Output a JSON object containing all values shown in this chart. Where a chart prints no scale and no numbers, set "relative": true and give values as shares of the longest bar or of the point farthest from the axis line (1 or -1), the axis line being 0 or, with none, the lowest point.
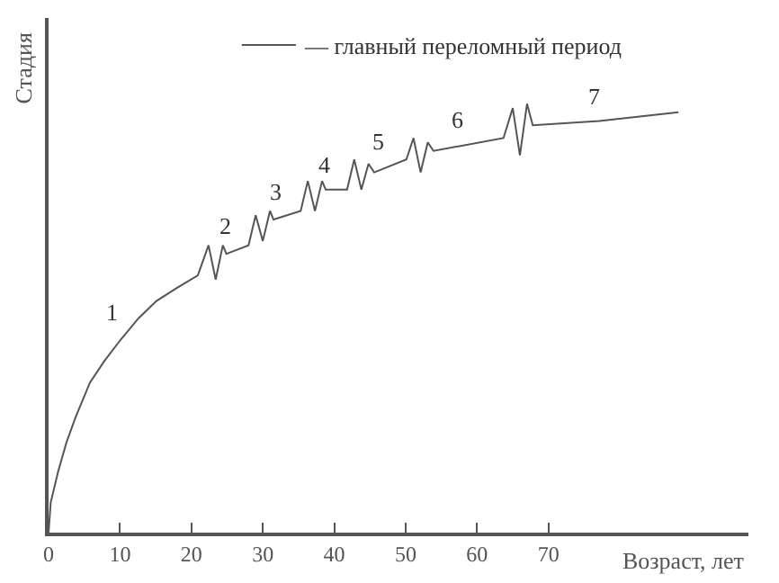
{
  "chart_data": {
    "type": "line",
    "relative": true,
    "xlabel": "Возраст, лет",
    "ylabel": "Стадия",
    "xlim": [
      0,
      98
    ],
    "xticks": [
      0,
      10,
      20,
      30,
      40,
      50,
      60,
      70
    ],
    "x": [
      0,
      0.3,
      1.3,
      2.5,
      3.8,
      5.8,
      7.8,
      10.1,
      12.6,
      15.1,
      17.9,
      20.9,
      22.4,
      23.4,
      24.4,
      24.9,
      28.0,
      29.0,
      30.0,
      31.0,
      31.5,
      35.3,
      36.3,
      37.3,
      38.3,
      38.8,
      41.8,
      42.8,
      43.8,
      44.8,
      45.6,
      50.1,
      51.1,
      52.1,
      53.1,
      53.9,
      63.7,
      65.0,
      66.0,
      67.0,
      67.8,
      77.1,
      88.2
    ],
    "series": [
      {
        "name": "— главный переломный период",
        "color": "#555555",
        "values": [
          0,
          0.07,
          0.14,
          0.21,
          0.27,
          0.35,
          0.4,
          0.45,
          0.5,
          0.54,
          0.57,
          0.6,
          0.67,
          0.59,
          0.67,
          0.65,
          0.67,
          0.74,
          0.68,
          0.75,
          0.73,
          0.75,
          0.82,
          0.75,
          0.82,
          0.8,
          0.8,
          0.87,
          0.8,
          0.86,
          0.84,
          0.87,
          0.92,
          0.84,
          0.91,
          0.89,
          0.92,
          0.99,
          0.88,
          1.0,
          0.95,
          0.96,
          0.98
        ]
      }
    ],
    "annotations": [
      "1",
      "2",
      "3",
      "4",
      "5",
      "6",
      "7"
    ],
    "legend": "top",
    "marker": "none",
    "line_style": "solid"
  }
}
